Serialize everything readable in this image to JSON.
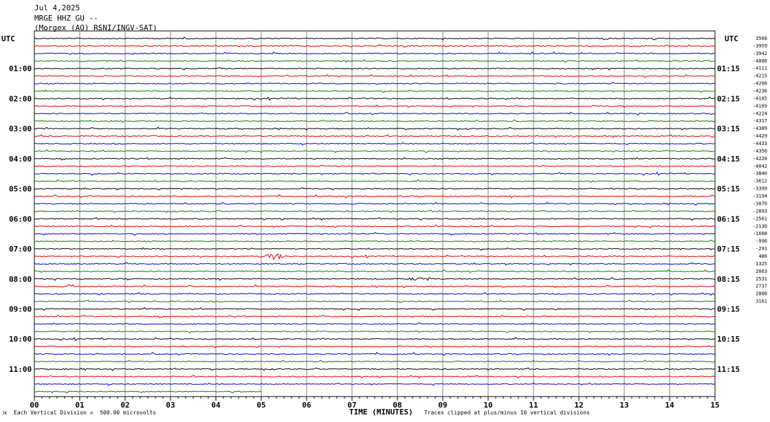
{
  "header": {
    "date": "Jul 4,2025",
    "station": "MRGE HHZ GU --",
    "network": "(Morgex (AO) RSNI/INGV-SAT)"
  },
  "utc_label_left": "UTC",
  "utc_label_right": "UTC",
  "footer": {
    "left_mark": "JK",
    "vertical_division": "Each Vertical Division =  500.00 microvolts",
    "time_axis": "TIME (MINUTES)",
    "clip_note": "Traces clipped at plus/minus 10 vertical divisions"
  },
  "colors": {
    "trace_cycle": [
      "#000000",
      "#e00000",
      "#0000e0",
      "#008000"
    ],
    "grid": "#808080"
  },
  "chart_data": {
    "type": "line",
    "title": "",
    "xlabel": "TIME (MINUTES)",
    "xlim": [
      0,
      15
    ],
    "x_ticks": [
      "00",
      "01",
      "02",
      "03",
      "04",
      "05",
      "06",
      "07",
      "08",
      "09",
      "10",
      "11",
      "12",
      "13",
      "14",
      "15"
    ],
    "hour_labels_left": [
      "01:00",
      "02:00",
      "03:00",
      "04:00",
      "05:00",
      "06:00",
      "07:00",
      "08:00",
      "09:00",
      "10:00",
      "11:00"
    ],
    "hour_labels_right": [
      "01:15",
      "02:15",
      "03:15",
      "04:15",
      "05:15",
      "06:15",
      "07:15",
      "08:15",
      "09:15",
      "10:15",
      "11:15"
    ],
    "total_lines": 48,
    "minutes_per_line": 15,
    "last_line_end_minute": 5,
    "trace_offsets": [
      "3566",
      "-3959",
      "-3942",
      "-4006",
      "-4111",
      "-4215",
      "-4266",
      "-4236",
      "-4185",
      "-4169",
      "-4224",
      "-4317",
      "-4389",
      "-4429",
      "-4433",
      "-4350",
      "-4220",
      "-4042",
      "-3840",
      "-3612",
      "-3399",
      "-3194",
      "-3070",
      "-2893",
      "-2561",
      "-2130",
      "-1608",
      "-996",
      "-291",
      "486",
      "1325",
      "2063",
      "2531",
      "2737",
      "2800",
      "3161"
    ],
    "events": [
      {
        "line": 0,
        "minute": 12.6,
        "amplitude": "small spike"
      },
      {
        "line": 29,
        "minute": 5.3,
        "amplitude": "burst"
      },
      {
        "line": 32,
        "minute": 8.5,
        "amplitude": "small burst"
      },
      {
        "line": 33,
        "minute": 0.8,
        "amplitude": "spike"
      }
    ],
    "grid": true
  }
}
